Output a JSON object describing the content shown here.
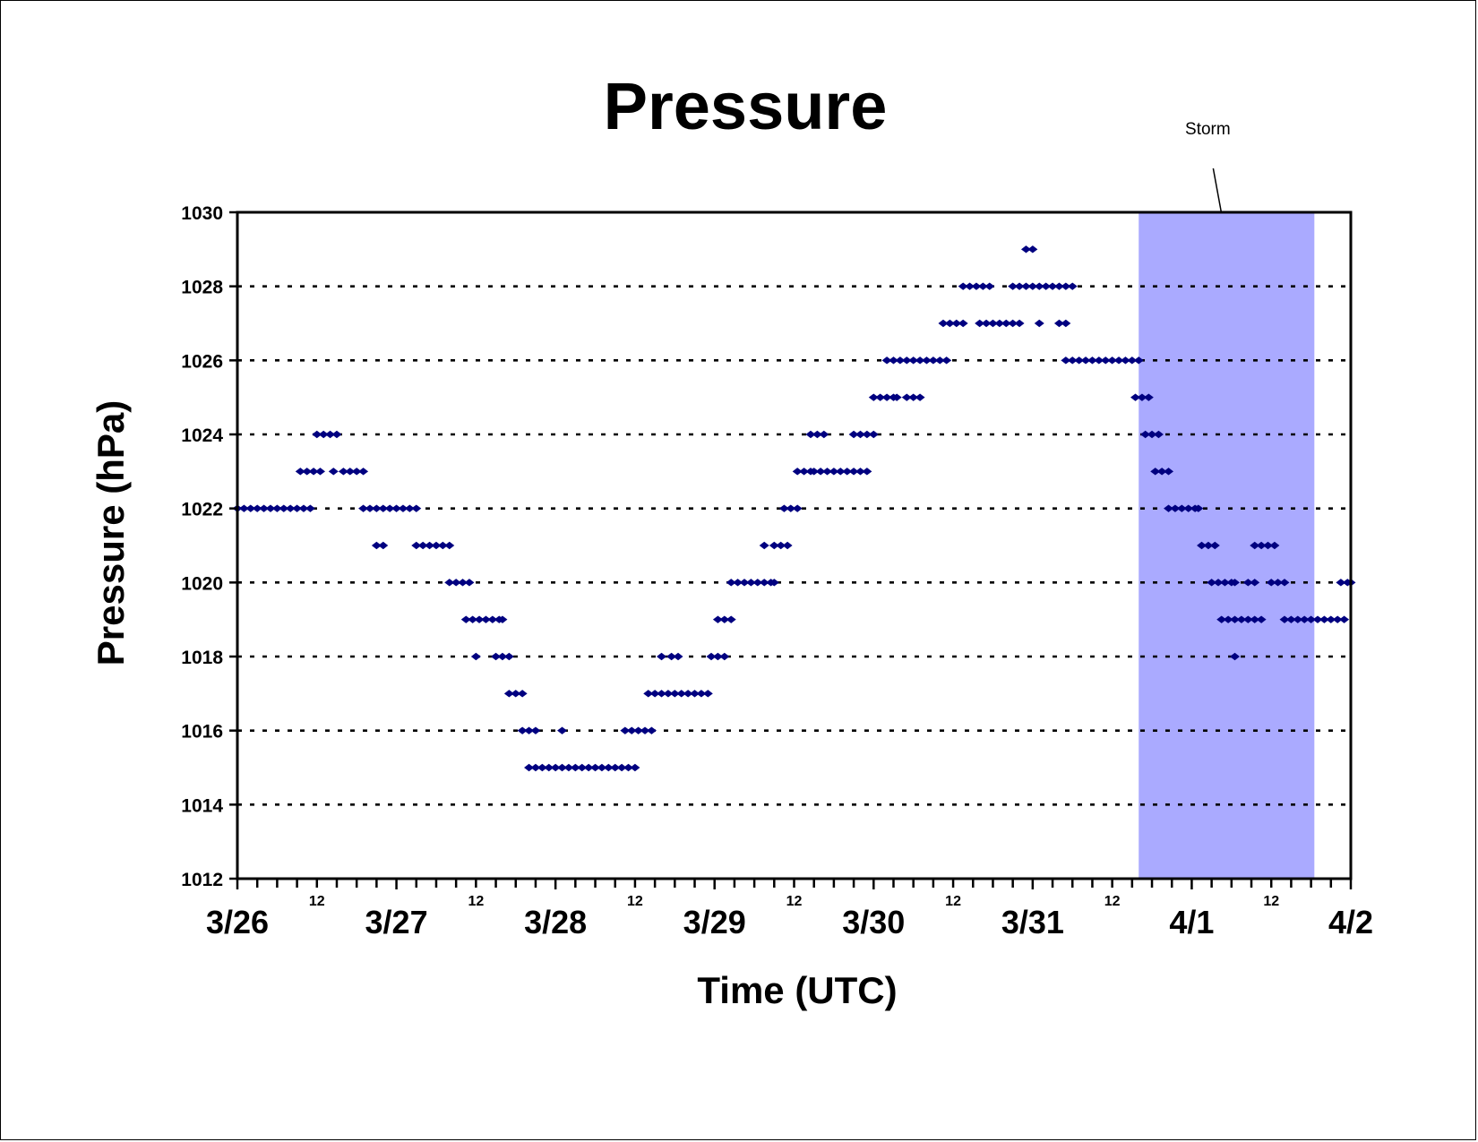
{
  "chart_data": {
    "type": "scatter",
    "title": "Pressure",
    "xlabel": "Time (UTC)",
    "ylabel": "Pressure (hPa)",
    "ylim": [
      1012,
      1030
    ],
    "yticks": [
      "1012",
      "1014",
      "1016",
      "1018",
      "1020",
      "1022",
      "1024",
      "1026",
      "1028",
      "1030"
    ],
    "xlim": [
      "3/26 00:00",
      "4/2 00:00"
    ],
    "x_day_labels": [
      "3/26",
      "3/27",
      "3/28",
      "3/29",
      "3/30",
      "3/31",
      "4/1",
      "4/2"
    ],
    "x_noon_label": "12",
    "grid": "horizontal dashed",
    "series_color": "#000080",
    "shade_color": "#aaaaff",
    "annotation": {
      "text": "Storm",
      "x_start": "3/31 16:00",
      "x_end": "4/1 18:30"
    },
    "points": [
      [
        "3/26 00:00",
        1022
      ],
      [
        "3/26 01:00",
        1022
      ],
      [
        "3/26 02:00",
        1022
      ],
      [
        "3/26 03:00",
        1022
      ],
      [
        "3/26 04:00",
        1022
      ],
      [
        "3/26 05:00",
        1022
      ],
      [
        "3/26 06:00",
        1022
      ],
      [
        "3/26 07:00",
        1022
      ],
      [
        "3/26 08:00",
        1022
      ],
      [
        "3/26 09:00",
        1022
      ],
      [
        "3/26 10:00",
        1022
      ],
      [
        "3/26 11:00",
        1022
      ],
      [
        "3/26 09:30",
        1023
      ],
      [
        "3/26 10:30",
        1023
      ],
      [
        "3/26 11:30",
        1023
      ],
      [
        "3/26 12:30",
        1023
      ],
      [
        "3/26 12:00",
        1024
      ],
      [
        "3/26 13:00",
        1024
      ],
      [
        "3/26 14:00",
        1024
      ],
      [
        "3/26 15:00",
        1024
      ],
      [
        "3/26 14:30",
        1023
      ],
      [
        "3/26 16:00",
        1023
      ],
      [
        "3/26 17:00",
        1023
      ],
      [
        "3/26 18:00",
        1023
      ],
      [
        "3/26 19:00",
        1023
      ],
      [
        "3/26 19:00",
        1022
      ],
      [
        "3/26 20:00",
        1022
      ],
      [
        "3/26 21:00",
        1022
      ],
      [
        "3/26 22:00",
        1022
      ],
      [
        "3/26 23:00",
        1022
      ],
      [
        "3/27 00:00",
        1022
      ],
      [
        "3/27 01:00",
        1022
      ],
      [
        "3/27 02:00",
        1022
      ],
      [
        "3/27 03:00",
        1022
      ],
      [
        "3/26 21:00",
        1021
      ],
      [
        "3/26 22:00",
        1021
      ],
      [
        "3/27 03:00",
        1021
      ],
      [
        "3/27 04:00",
        1021
      ],
      [
        "3/27 05:00",
        1021
      ],
      [
        "3/27 06:00",
        1021
      ],
      [
        "3/27 07:00",
        1021
      ],
      [
        "3/27 08:00",
        1021
      ],
      [
        "3/27 08:00",
        1020
      ],
      [
        "3/27 09:00",
        1020
      ],
      [
        "3/27 10:00",
        1020
      ],
      [
        "3/27 11:00",
        1020
      ],
      [
        "3/27 10:30",
        1019
      ],
      [
        "3/27 11:30",
        1019
      ],
      [
        "3/27 12:30",
        1019
      ],
      [
        "3/27 13:30",
        1019
      ],
      [
        "3/27 14:30",
        1019
      ],
      [
        "3/27 15:30",
        1019
      ],
      [
        "3/27 16:00",
        1019
      ],
      [
        "3/27 12:00",
        1018
      ],
      [
        "3/27 15:00",
        1018
      ],
      [
        "3/27 16:00",
        1018
      ],
      [
        "3/27 17:00",
        1018
      ],
      [
        "3/27 17:00",
        1017
      ],
      [
        "3/27 18:00",
        1017
      ],
      [
        "3/27 19:00",
        1017
      ],
      [
        "3/27 19:00",
        1016
      ],
      [
        "3/27 20:00",
        1016
      ],
      [
        "3/27 21:00",
        1016
      ],
      [
        "3/28 01:00",
        1016
      ],
      [
        "3/27 20:00",
        1015
      ],
      [
        "3/27 21:00",
        1015
      ],
      [
        "3/27 22:00",
        1015
      ],
      [
        "3/27 23:00",
        1015
      ],
      [
        "3/28 00:00",
        1015
      ],
      [
        "3/28 01:00",
        1015
      ],
      [
        "3/28 02:00",
        1015
      ],
      [
        "3/28 03:00",
        1015
      ],
      [
        "3/28 04:00",
        1015
      ],
      [
        "3/28 05:00",
        1015
      ],
      [
        "3/28 06:00",
        1015
      ],
      [
        "3/28 07:00",
        1015
      ],
      [
        "3/28 08:00",
        1015
      ],
      [
        "3/28 09:00",
        1015
      ],
      [
        "3/28 10:00",
        1015
      ],
      [
        "3/28 11:00",
        1015
      ],
      [
        "3/28 12:00",
        1015
      ],
      [
        "3/28 10:30",
        1016
      ],
      [
        "3/28 11:30",
        1016
      ],
      [
        "3/28 12:30",
        1016
      ],
      [
        "3/28 13:30",
        1016
      ],
      [
        "3/28 14:30",
        1016
      ],
      [
        "3/28 14:00",
        1017
      ],
      [
        "3/28 15:00",
        1017
      ],
      [
        "3/28 16:00",
        1017
      ],
      [
        "3/28 17:00",
        1017
      ],
      [
        "3/28 18:00",
        1017
      ],
      [
        "3/28 19:00",
        1017
      ],
      [
        "3/28 20:00",
        1017
      ],
      [
        "3/28 21:00",
        1017
      ],
      [
        "3/28 22:00",
        1017
      ],
      [
        "3/28 23:00",
        1017
      ],
      [
        "3/28 16:00",
        1018
      ],
      [
        "3/28 17:30",
        1018
      ],
      [
        "3/28 18:30",
        1018
      ],
      [
        "3/28 23:30",
        1018
      ],
      [
        "3/29 00:30",
        1018
      ],
      [
        "3/29 01:30",
        1018
      ],
      [
        "3/29 00:30",
        1019
      ],
      [
        "3/29 01:30",
        1019
      ],
      [
        "3/29 02:30",
        1019
      ],
      [
        "3/29 02:30",
        1020
      ],
      [
        "3/29 03:30",
        1020
      ],
      [
        "3/29 04:30",
        1020
      ],
      [
        "3/29 05:30",
        1020
      ],
      [
        "3/29 06:30",
        1020
      ],
      [
        "3/29 07:30",
        1020
      ],
      [
        "3/29 08:30",
        1020
      ],
      [
        "3/29 09:00",
        1020
      ],
      [
        "3/29 07:30",
        1021
      ],
      [
        "3/29 09:00",
        1021
      ],
      [
        "3/29 10:00",
        1021
      ],
      [
        "3/29 11:00",
        1021
      ],
      [
        "3/29 10:30",
        1022
      ],
      [
        "3/29 11:30",
        1022
      ],
      [
        "3/29 12:30",
        1022
      ],
      [
        "3/29 12:30",
        1023
      ],
      [
        "3/29 13:30",
        1023
      ],
      [
        "3/29 14:30",
        1023
      ],
      [
        "3/29 15:00",
        1023
      ],
      [
        "3/29 14:30",
        1024
      ],
      [
        "3/29 15:30",
        1024
      ],
      [
        "3/29 16:30",
        1024
      ],
      [
        "3/29 16:00",
        1023
      ],
      [
        "3/29 17:00",
        1023
      ],
      [
        "3/29 18:00",
        1023
      ],
      [
        "3/29 19:00",
        1023
      ],
      [
        "3/29 20:00",
        1023
      ],
      [
        "3/29 21:00",
        1023
      ],
      [
        "3/29 22:00",
        1023
      ],
      [
        "3/29 23:00",
        1023
      ],
      [
        "3/29 21:00",
        1024
      ],
      [
        "3/29 22:00",
        1024
      ],
      [
        "3/29 23:00",
        1024
      ],
      [
        "3/30 00:00",
        1024
      ],
      [
        "3/30 00:00",
        1025
      ],
      [
        "3/30 01:00",
        1025
      ],
      [
        "3/30 02:00",
        1025
      ],
      [
        "3/30 03:00",
        1025
      ],
      [
        "3/30 03:30",
        1025
      ],
      [
        "3/30 05:00",
        1025
      ],
      [
        "3/30 06:00",
        1025
      ],
      [
        "3/30 07:00",
        1025
      ],
      [
        "3/30 02:00",
        1026
      ],
      [
        "3/30 03:00",
        1026
      ],
      [
        "3/30 04:00",
        1026
      ],
      [
        "3/30 05:00",
        1026
      ],
      [
        "3/30 06:00",
        1026
      ],
      [
        "3/30 07:00",
        1026
      ],
      [
        "3/30 08:00",
        1026
      ],
      [
        "3/30 09:00",
        1026
      ],
      [
        "3/30 10:00",
        1026
      ],
      [
        "3/30 11:00",
        1026
      ],
      [
        "3/30 10:30",
        1027
      ],
      [
        "3/30 11:30",
        1027
      ],
      [
        "3/30 12:30",
        1027
      ],
      [
        "3/30 13:30",
        1027
      ],
      [
        "3/30 13:30",
        1028
      ],
      [
        "3/30 14:30",
        1028
      ],
      [
        "3/30 15:30",
        1028
      ],
      [
        "3/30 16:30",
        1028
      ],
      [
        "3/30 17:30",
        1028
      ],
      [
        "3/30 16:00",
        1027
      ],
      [
        "3/30 17:00",
        1027
      ],
      [
        "3/30 18:00",
        1027
      ],
      [
        "3/30 19:00",
        1027
      ],
      [
        "3/30 20:00",
        1027
      ],
      [
        "3/30 21:00",
        1027
      ],
      [
        "3/30 22:00",
        1027
      ],
      [
        "3/30 21:00",
        1028
      ],
      [
        "3/30 22:00",
        1028
      ],
      [
        "3/30 23:00",
        1028
      ],
      [
        "3/31 00:00",
        1028
      ],
      [
        "3/31 01:00",
        1028
      ],
      [
        "3/31 02:00",
        1028
      ],
      [
        "3/31 03:00",
        1028
      ],
      [
        "3/31 04:00",
        1028
      ],
      [
        "3/31 05:00",
        1028
      ],
      [
        "3/31 06:00",
        1028
      ],
      [
        "3/30 23:00",
        1029
      ],
      [
        "3/31 00:00",
        1029
      ],
      [
        "3/31 01:00",
        1027
      ],
      [
        "3/31 04:00",
        1027
      ],
      [
        "3/31 05:00",
        1027
      ],
      [
        "3/31 05:00",
        1026
      ],
      [
        "3/31 06:00",
        1026
      ],
      [
        "3/31 07:00",
        1026
      ],
      [
        "3/31 08:00",
        1026
      ],
      [
        "3/31 09:00",
        1026
      ],
      [
        "3/31 10:00",
        1026
      ],
      [
        "3/31 11:00",
        1026
      ],
      [
        "3/31 12:00",
        1026
      ],
      [
        "3/31 13:00",
        1026
      ],
      [
        "3/31 14:00",
        1026
      ],
      [
        "3/31 15:00",
        1026
      ],
      [
        "3/31 16:00",
        1026
      ],
      [
        "3/31 15:30",
        1025
      ],
      [
        "3/31 16:30",
        1025
      ],
      [
        "3/31 17:30",
        1025
      ],
      [
        "3/31 17:00",
        1024
      ],
      [
        "3/31 18:00",
        1024
      ],
      [
        "3/31 19:00",
        1024
      ],
      [
        "3/31 18:30",
        1023
      ],
      [
        "3/31 19:30",
        1023
      ],
      [
        "3/31 20:30",
        1023
      ],
      [
        "3/31 20:30",
        1022
      ],
      [
        "3/31 21:30",
        1022
      ],
      [
        "3/31 22:30",
        1022
      ],
      [
        "3/31 23:30",
        1022
      ],
      [
        "4/1 00:30",
        1022
      ],
      [
        "4/1 01:00",
        1022
      ],
      [
        "4/1 01:30",
        1021
      ],
      [
        "4/1 02:30",
        1021
      ],
      [
        "4/1 03:30",
        1021
      ],
      [
        "4/1 03:00",
        1020
      ],
      [
        "4/1 04:00",
        1020
      ],
      [
        "4/1 05:00",
        1020
      ],
      [
        "4/1 06:00",
        1020
      ],
      [
        "4/1 06:30",
        1020
      ],
      [
        "4/1 04:30",
        1019
      ],
      [
        "4/1 05:30",
        1019
      ],
      [
        "4/1 06:30",
        1019
      ],
      [
        "4/1 07:30",
        1019
      ],
      [
        "4/1 08:30",
        1019
      ],
      [
        "4/1 09:30",
        1019
      ],
      [
        "4/1 10:30",
        1019
      ],
      [
        "4/1 06:30",
        1018
      ],
      [
        "4/1 08:30",
        1020
      ],
      [
        "4/1 09:30",
        1020
      ],
      [
        "4/1 09:30",
        1021
      ],
      [
        "4/1 10:30",
        1021
      ],
      [
        "4/1 11:30",
        1021
      ],
      [
        "4/1 12:30",
        1021
      ],
      [
        "4/1 12:00",
        1020
      ],
      [
        "4/1 13:00",
        1020
      ],
      [
        "4/1 14:00",
        1020
      ],
      [
        "4/1 14:00",
        1019
      ],
      [
        "4/1 15:00",
        1019
      ],
      [
        "4/1 16:00",
        1019
      ],
      [
        "4/1 17:00",
        1019
      ],
      [
        "4/1 18:00",
        1019
      ],
      [
        "4/1 19:00",
        1019
      ],
      [
        "4/1 20:00",
        1019
      ],
      [
        "4/1 21:00",
        1019
      ],
      [
        "4/1 22:00",
        1019
      ],
      [
        "4/1 23:00",
        1019
      ],
      [
        "4/1 22:30",
        1020
      ],
      [
        "4/1 23:30",
        1020
      ],
      [
        "4/2 00:00",
        1020
      ]
    ]
  }
}
